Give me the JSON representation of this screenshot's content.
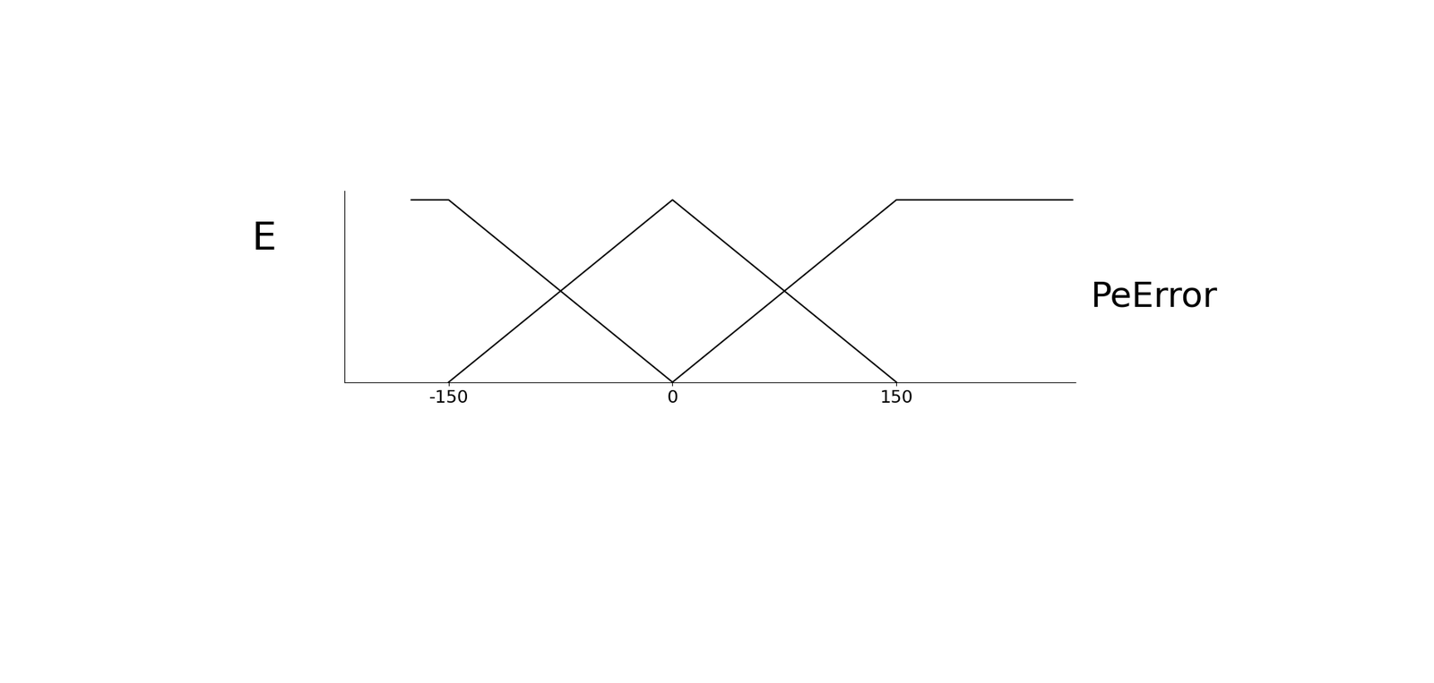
{
  "chart_data": {
    "type": "line",
    "ylabel": "E",
    "xlabel": "PeError",
    "series": [
      {
        "color": "#000000",
        "x": [
          -175,
          -150,
          0
        ],
        "values": [
          1,
          1,
          0
        ]
      },
      {
        "color": "#000000",
        "x": [
          -150,
          0,
          150
        ],
        "values": [
          0,
          1,
          0
        ]
      },
      {
        "color": "#000000",
        "x": [
          0,
          150,
          268
        ],
        "values": [
          0,
          1,
          1
        ]
      }
    ],
    "xlim": [
      -220,
      270
    ],
    "ylim": [
      0,
      1.05
    ],
    "xticks": [
      -150,
      0,
      150
    ],
    "yticks": [],
    "tick_labels": "x",
    "grid": false
  }
}
